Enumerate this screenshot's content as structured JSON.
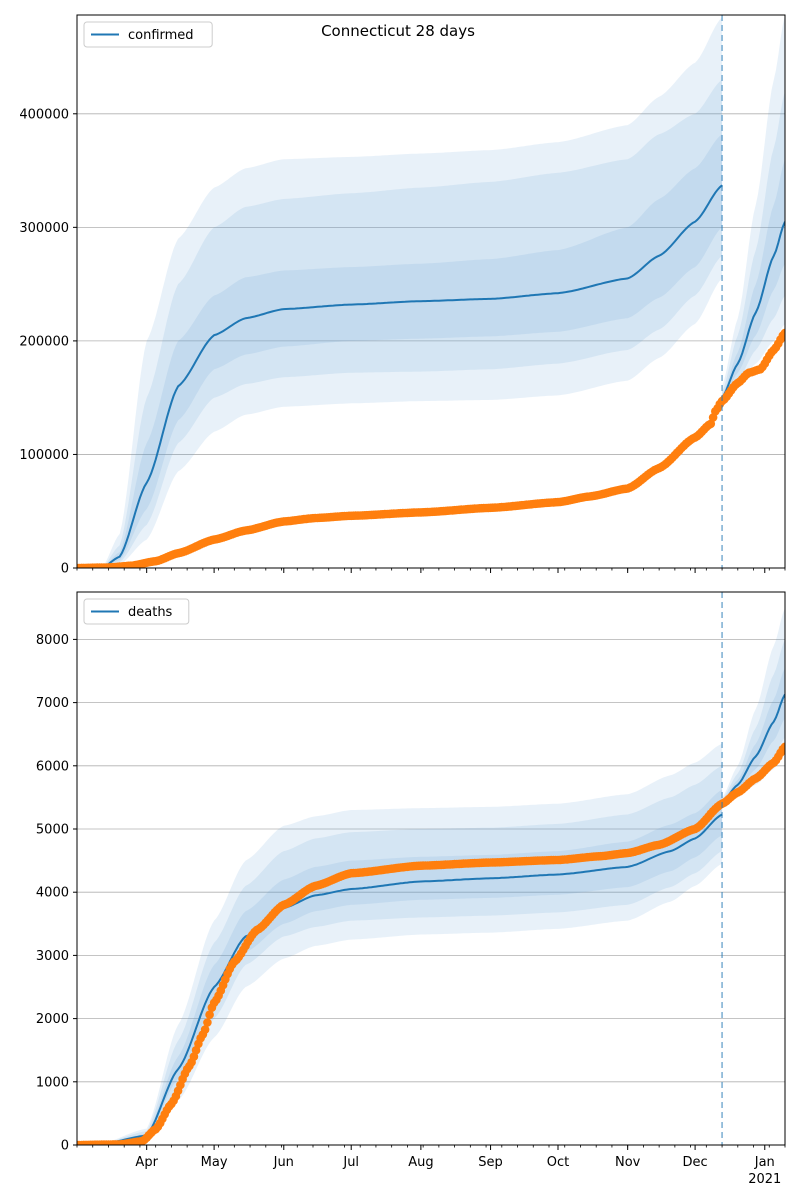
{
  "title": "Connecticut 28 days",
  "colors": {
    "model": "#1f77b4",
    "band": "#5b9bd5",
    "observed": "#ff7f0e",
    "grid": "#b0b0b0",
    "forecast_line": "#1f77b4"
  },
  "x_axis": {
    "month_labels": [
      {
        "label": "Apr",
        "date": "2020-04-01"
      },
      {
        "label": "May",
        "date": "2020-05-01"
      },
      {
        "label": "Jun",
        "date": "2020-06-01"
      },
      {
        "label": "Jul",
        "date": "2020-07-01"
      },
      {
        "label": "Aug",
        "date": "2020-08-01"
      },
      {
        "label": "Sep",
        "date": "2020-09-01"
      },
      {
        "label": "Oct",
        "date": "2020-10-01"
      },
      {
        "label": "Nov",
        "date": "2020-11-01"
      },
      {
        "label": "Dec",
        "date": "2020-12-01"
      },
      {
        "label": "Jan",
        "date": "2021-01-01"
      }
    ],
    "year_label": "2021",
    "range": [
      "2020-03-01",
      "2021-01-10"
    ],
    "forecast_start": "2020-12-13"
  },
  "chart_data": [
    {
      "type": "line",
      "legend": "confirmed",
      "legend_position": "top-left",
      "ylim": [
        0,
        487000
      ],
      "yticks": [
        0,
        100000,
        200000,
        300000,
        400000
      ],
      "grid": true,
      "bands_knots": [
        {
          "date": "2020-03-12",
          "p2_5": 0,
          "p10": 0,
          "p25": 0,
          "p50": 0,
          "p75": 0,
          "p90": 0,
          "p97_5": 0
        },
        {
          "date": "2020-03-20",
          "p2_5": 3000,
          "p10": 5000,
          "p25": 7000,
          "p50": 10000,
          "p75": 14000,
          "p90": 20000,
          "p97_5": 30000
        },
        {
          "date": "2020-04-01",
          "p2_5": 25000,
          "p10": 38000,
          "p25": 52000,
          "p50": 75000,
          "p75": 110000,
          "p90": 150000,
          "p97_5": 200000
        },
        {
          "date": "2020-04-15",
          "p2_5": 85000,
          "p10": 110000,
          "p25": 130000,
          "p50": 160000,
          "p75": 200000,
          "p90": 250000,
          "p97_5": 290000
        },
        {
          "date": "2020-05-01",
          "p2_5": 120000,
          "p10": 150000,
          "p25": 175000,
          "p50": 205000,
          "p75": 240000,
          "p90": 300000,
          "p97_5": 335000
        },
        {
          "date": "2020-05-15",
          "p2_5": 135000,
          "p10": 162000,
          "p25": 188000,
          "p50": 220000,
          "p75": 256000,
          "p90": 318000,
          "p97_5": 352000
        },
        {
          "date": "2020-06-01",
          "p2_5": 142000,
          "p10": 168000,
          "p25": 195000,
          "p50": 228000,
          "p75": 262000,
          "p90": 325000,
          "p97_5": 360000
        },
        {
          "date": "2020-07-01",
          "p2_5": 145000,
          "p10": 172000,
          "p25": 200000,
          "p50": 232000,
          "p75": 265000,
          "p90": 330000,
          "p97_5": 362000
        },
        {
          "date": "2020-08-01",
          "p2_5": 147000,
          "p10": 173000,
          "p25": 202000,
          "p50": 235000,
          "p75": 268000,
          "p90": 335000,
          "p97_5": 365000
        },
        {
          "date": "2020-09-01",
          "p2_5": 148000,
          "p10": 175000,
          "p25": 204000,
          "p50": 237000,
          "p75": 272000,
          "p90": 340000,
          "p97_5": 368000
        },
        {
          "date": "2020-10-01",
          "p2_5": 152000,
          "p10": 180000,
          "p25": 208000,
          "p50": 242000,
          "p75": 280000,
          "p90": 348000,
          "p97_5": 375000
        },
        {
          "date": "2020-11-01",
          "p2_5": 165000,
          "p10": 192000,
          "p25": 220000,
          "p50": 255000,
          "p75": 300000,
          "p90": 360000,
          "p97_5": 390000
        },
        {
          "date": "2020-11-15",
          "p2_5": 185000,
          "p10": 210000,
          "p25": 238000,
          "p50": 275000,
          "p75": 325000,
          "p90": 382000,
          "p97_5": 415000
        },
        {
          "date": "2020-12-01",
          "p2_5": 215000,
          "p10": 240000,
          "p25": 265000,
          "p50": 305000,
          "p75": 352000,
          "p90": 400000,
          "p97_5": 445000
        },
        {
          "date": "2020-12-13",
          "p2_5": 255000,
          "p10": 275000,
          "p25": 300000,
          "p50": 337000,
          "p75": 382000,
          "p90": 430000,
          "p97_5": 485000
        }
      ],
      "forecast_knots": [
        {
          "date": "2020-12-13",
          "p2_5": 142000,
          "p10": 145000,
          "p25": 147000,
          "p50": 150000,
          "p75": 152000,
          "p90": 155000,
          "p97_5": 160000
        },
        {
          "date": "2020-12-20",
          "p2_5": 160000,
          "p10": 165000,
          "p25": 172000,
          "p50": 180000,
          "p75": 190000,
          "p90": 205000,
          "p97_5": 220000
        },
        {
          "date": "2020-12-28",
          "p2_5": 180000,
          "p10": 192000,
          "p25": 205000,
          "p50": 225000,
          "p75": 250000,
          "p90": 280000,
          "p97_5": 320000
        },
        {
          "date": "2021-01-05",
          "p2_5": 200000,
          "p10": 220000,
          "p25": 245000,
          "p50": 275000,
          "p75": 320000,
          "p90": 370000,
          "p97_5": 430000
        },
        {
          "date": "2021-01-10",
          "p2_5": 215000,
          "p10": 240000,
          "p25": 268000,
          "p50": 305000,
          "p75": 360000,
          "p90": 420000,
          "p97_5": 487000
        }
      ],
      "observed_knots": [
        {
          "date": "2020-03-01",
          "value": 0
        },
        {
          "date": "2020-03-15",
          "value": 500
        },
        {
          "date": "2020-03-25",
          "value": 2000
        },
        {
          "date": "2020-04-05",
          "value": 6000
        },
        {
          "date": "2020-04-15",
          "value": 13000
        },
        {
          "date": "2020-05-01",
          "value": 25000
        },
        {
          "date": "2020-05-15",
          "value": 33000
        },
        {
          "date": "2020-06-01",
          "value": 41000
        },
        {
          "date": "2020-06-15",
          "value": 44000
        },
        {
          "date": "2020-07-01",
          "value": 46000
        },
        {
          "date": "2020-08-01",
          "value": 49000
        },
        {
          "date": "2020-09-01",
          "value": 53000
        },
        {
          "date": "2020-10-01",
          "value": 58000
        },
        {
          "date": "2020-10-15",
          "value": 63000
        },
        {
          "date": "2020-11-01",
          "value": 70000
        },
        {
          "date": "2020-11-15",
          "value": 88000
        },
        {
          "date": "2020-12-01",
          "value": 115000
        },
        {
          "date": "2020-12-08",
          "value": 127000
        },
        {
          "date": "2020-12-10",
          "value": 138000
        },
        {
          "date": "2020-12-13",
          "value": 147000
        },
        {
          "date": "2020-12-20",
          "value": 163000
        },
        {
          "date": "2020-12-25",
          "value": 172000
        },
        {
          "date": "2020-12-30",
          "value": 175000
        },
        {
          "date": "2021-01-05",
          "value": 192000
        },
        {
          "date": "2021-01-10",
          "value": 207000
        }
      ]
    },
    {
      "type": "line",
      "legend": "deaths",
      "legend_position": "top-left",
      "ylim": [
        0,
        8750
      ],
      "yticks": [
        0,
        1000,
        2000,
        3000,
        4000,
        5000,
        6000,
        7000,
        8000
      ],
      "grid": true,
      "bands_knots": [
        {
          "date": "2020-03-10",
          "p2_5": 0,
          "p10": 0,
          "p25": 0,
          "p50": 0,
          "p75": 0,
          "p90": 0,
          "p97_5": 0
        },
        {
          "date": "2020-04-01",
          "p2_5": 80,
          "p10": 100,
          "p25": 120,
          "p50": 150,
          "p75": 180,
          "p90": 220,
          "p97_5": 260
        },
        {
          "date": "2020-04-15",
          "p2_5": 700,
          "p10": 900,
          "p25": 1050,
          "p50": 1200,
          "p75": 1400,
          "p90": 1650,
          "p97_5": 1900
        },
        {
          "date": "2020-05-01",
          "p2_5": 1700,
          "p10": 2000,
          "p25": 2250,
          "p50": 2500,
          "p75": 2850,
          "p90": 3200,
          "p97_5": 3550
        },
        {
          "date": "2020-05-15",
          "p2_5": 2500,
          "p10": 2850,
          "p25": 3050,
          "p50": 3300,
          "p75": 3700,
          "p90": 4100,
          "p97_5": 4500
        },
        {
          "date": "2020-06-01",
          "p2_5": 2950,
          "p10": 3300,
          "p25": 3500,
          "p50": 3750,
          "p75": 4200,
          "p90": 4650,
          "p97_5": 5050
        },
        {
          "date": "2020-06-15",
          "p2_5": 3150,
          "p10": 3450,
          "p25": 3700,
          "p50": 3950,
          "p75": 4400,
          "p90": 4850,
          "p97_5": 5200
        },
        {
          "date": "2020-07-01",
          "p2_5": 3250,
          "p10": 3550,
          "p25": 3800,
          "p50": 4050,
          "p75": 4500,
          "p90": 4950,
          "p97_5": 5300
        },
        {
          "date": "2020-08-01",
          "p2_5": 3330,
          "p10": 3600,
          "p25": 3880,
          "p50": 4170,
          "p75": 4560,
          "p90": 5000,
          "p97_5": 5330
        },
        {
          "date": "2020-09-01",
          "p2_5": 3360,
          "p10": 3630,
          "p25": 3910,
          "p50": 4220,
          "p75": 4590,
          "p90": 5020,
          "p97_5": 5350
        },
        {
          "date": "2020-10-01",
          "p2_5": 3420,
          "p10": 3680,
          "p25": 3960,
          "p50": 4280,
          "p75": 4650,
          "p90": 5080,
          "p97_5": 5400
        },
        {
          "date": "2020-11-01",
          "p2_5": 3550,
          "p10": 3800,
          "p25": 4080,
          "p50": 4400,
          "p75": 4800,
          "p90": 5230,
          "p97_5": 5550
        },
        {
          "date": "2020-11-20",
          "p2_5": 3850,
          "p10": 4080,
          "p25": 4330,
          "p50": 4650,
          "p75": 5070,
          "p90": 5500,
          "p97_5": 5850
        },
        {
          "date": "2020-12-01",
          "p2_5": 4100,
          "p10": 4300,
          "p25": 4550,
          "p50": 4850,
          "p75": 5250,
          "p90": 5700,
          "p97_5": 6050
        },
        {
          "date": "2020-12-13",
          "p2_5": 4450,
          "p10": 4650,
          "p25": 4900,
          "p50": 5230,
          "p75": 5620,
          "p90": 6000,
          "p97_5": 6350
        }
      ],
      "forecast_knots": [
        {
          "date": "2020-12-13",
          "p2_5": 5350,
          "p10": 5370,
          "p25": 5390,
          "p50": 5420,
          "p75": 5440,
          "p90": 5470,
          "p97_5": 5500
        },
        {
          "date": "2020-12-20",
          "p2_5": 5500,
          "p10": 5560,
          "p25": 5620,
          "p50": 5700,
          "p75": 5780,
          "p90": 5880,
          "p97_5": 6000
        },
        {
          "date": "2020-12-28",
          "p2_5": 5700,
          "p10": 5820,
          "p25": 5950,
          "p50": 6150,
          "p75": 6350,
          "p90": 6600,
          "p97_5": 6900
        },
        {
          "date": "2021-01-05",
          "p2_5": 5950,
          "p10": 6150,
          "p25": 6400,
          "p50": 6700,
          "p75": 7050,
          "p90": 7450,
          "p97_5": 7900
        },
        {
          "date": "2021-01-10",
          "p2_5": 6200,
          "p10": 6450,
          "p25": 6750,
          "p50": 7130,
          "p75": 7550,
          "p90": 8000,
          "p97_5": 8500
        }
      ],
      "observed_knots": [
        {
          "date": "2020-03-01",
          "value": 0
        },
        {
          "date": "2020-03-20",
          "value": 10
        },
        {
          "date": "2020-03-30",
          "value": 60
        },
        {
          "date": "2020-04-05",
          "value": 250
        },
        {
          "date": "2020-04-12",
          "value": 650
        },
        {
          "date": "2020-04-20",
          "value": 1250
        },
        {
          "date": "2020-04-26",
          "value": 1750
        },
        {
          "date": "2020-05-01",
          "value": 2250
        },
        {
          "date": "2020-05-10",
          "value": 2900
        },
        {
          "date": "2020-05-20",
          "value": 3400
        },
        {
          "date": "2020-06-01",
          "value": 3800
        },
        {
          "date": "2020-06-15",
          "value": 4100
        },
        {
          "date": "2020-07-01",
          "value": 4300
        },
        {
          "date": "2020-08-01",
          "value": 4420
        },
        {
          "date": "2020-09-01",
          "value": 4470
        },
        {
          "date": "2020-10-01",
          "value": 4510
        },
        {
          "date": "2020-10-20",
          "value": 4570
        },
        {
          "date": "2020-11-01",
          "value": 4620
        },
        {
          "date": "2020-11-15",
          "value": 4750
        },
        {
          "date": "2020-12-01",
          "value": 5000
        },
        {
          "date": "2020-12-13",
          "value": 5400
        },
        {
          "date": "2020-12-20",
          "value": 5580
        },
        {
          "date": "2020-12-28",
          "value": 5800
        },
        {
          "date": "2021-01-05",
          "value": 6050
        },
        {
          "date": "2021-01-10",
          "value": 6300
        }
      ]
    }
  ]
}
